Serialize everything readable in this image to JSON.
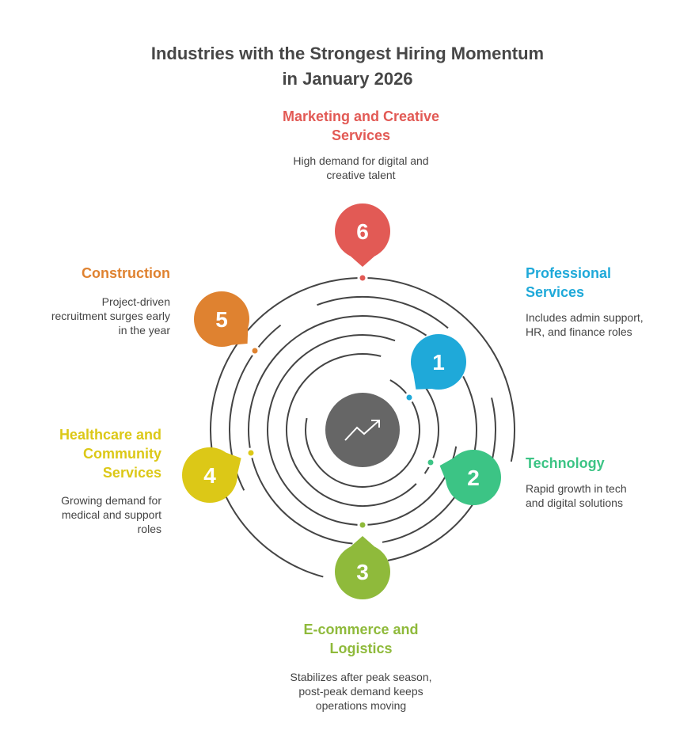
{
  "title": "Industries with the Strongest Hiring Momentum\nin January 2026",
  "center_icon": "trending-up-icon",
  "items": [
    {
      "number": "1",
      "heading": "Professional\nServices",
      "description": "Includes admin support,\nHR, and finance roles",
      "color": "#1fa9d9"
    },
    {
      "number": "2",
      "heading": "Technology",
      "description": "Rapid growth in tech\nand digital solutions",
      "color": "#3cc485"
    },
    {
      "number": "3",
      "heading": "E-commerce and\nLogistics",
      "description": "Stabilizes after peak season,\npost-peak demand keeps\noperations moving",
      "color": "#8fba3b"
    },
    {
      "number": "4",
      "heading": "Healthcare and\nCommunity\nServices",
      "description": "Growing demand for\nmedical and support\nroles",
      "color": "#dcc817"
    },
    {
      "number": "5",
      "heading": "Construction",
      "description": "Project-driven\nrecruitment surges early\nin the year",
      "color": "#df8230"
    },
    {
      "number": "6",
      "heading": "Marketing and Creative\nServices",
      "description": "High demand for digital and\ncreative talent",
      "color": "#e25a55"
    }
  ]
}
